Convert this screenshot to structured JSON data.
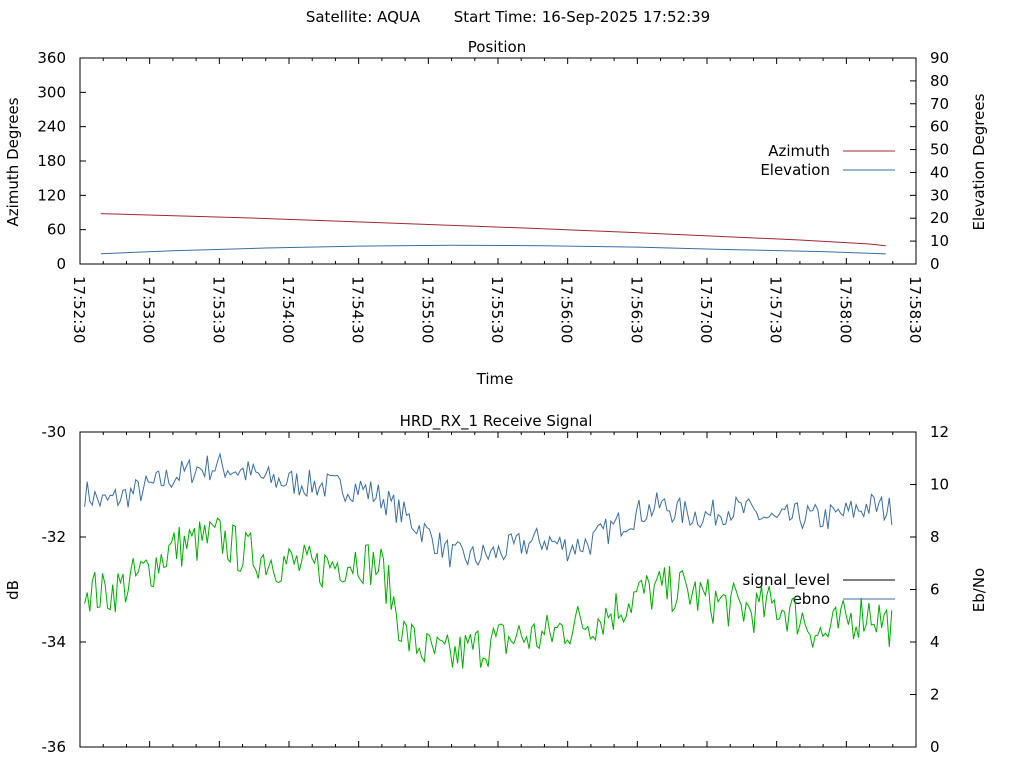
{
  "header": {
    "satellite": "Satellite: AQUA",
    "start_time": "Start Time: 16-Sep-2025 17:52:39"
  },
  "colors": {
    "azimuth": "#a0282f",
    "elevation": "#3a6e9e",
    "signal_level": "#000000",
    "signal_green": "#00aa00",
    "ebno": "#3a6e9e"
  },
  "chart_data": [
    {
      "type": "line",
      "title": "Position",
      "xlabel": "Time",
      "ylabel_left": "Azimuth Degrees",
      "ylabel_right": "Elevation Degrees",
      "x_ticks": [
        "17:52:30",
        "17:53:00",
        "17:53:30",
        "17:54:00",
        "17:54:30",
        "17:55:00",
        "17:55:30",
        "17:56:00",
        "17:56:30",
        "17:57:00",
        "17:57:30",
        "17:58:00",
        "17:58:30"
      ],
      "xlim_sec": [
        0,
        360
      ],
      "y_left_ticks": [
        "0",
        "60",
        "120",
        "180",
        "240",
        "300",
        "360"
      ],
      "y_left_lim": [
        0,
        360
      ],
      "y_right_ticks": [
        "0",
        "10",
        "20",
        "30",
        "40",
        "50",
        "60",
        "70",
        "80",
        "90"
      ],
      "y_right_lim": [
        0,
        90
      ],
      "legend": "right",
      "series": [
        {
          "name": "Azimuth",
          "axis": "left",
          "x_sec": [
            9,
            70,
            130,
            190,
            250,
            310,
            340,
            347
          ],
          "values": [
            88,
            81,
            72,
            63,
            53,
            42,
            35,
            32
          ]
        },
        {
          "name": "Elevation",
          "axis": "right",
          "x_sec": [
            9,
            40,
            80,
            120,
            160,
            200,
            240,
            280,
            320,
            347
          ],
          "values": [
            4.5,
            5.8,
            7.0,
            7.8,
            8.2,
            8.0,
            7.4,
            6.3,
            5.4,
            4.4
          ]
        }
      ]
    },
    {
      "type": "line",
      "title": "HRD_RX_1 Receive Signal",
      "ylabel_left": "dB",
      "ylabel_right": "Eb/No",
      "xlim_sec": [
        0,
        360
      ],
      "y_left_ticks": [
        "-36",
        "-34",
        "-32",
        "-30"
      ],
      "y_left_lim": [
        -36,
        -30
      ],
      "y_right_ticks": [
        "0",
        "2",
        "4",
        "6",
        "8",
        "10",
        "12"
      ],
      "y_right_lim": [
        0,
        12
      ],
      "legend": "right",
      "x_sec": [
        0,
        10,
        20,
        30,
        40,
        50,
        60,
        70,
        80,
        90,
        100,
        110,
        120,
        130,
        140,
        150,
        160,
        170,
        180,
        190,
        200,
        210,
        220,
        230,
        240,
        250,
        260,
        270,
        280,
        290,
        300,
        310,
        320,
        330,
        340,
        350
      ],
      "series": [
        {
          "name": "signal_level",
          "axis": "left",
          "values": []
        },
        {
          "name": "ebno",
          "axis": "right",
          "values": [
            9.8,
            9.3,
            9.6,
            9.9,
            10.3,
            10.6,
            10.7,
            10.5,
            10.2,
            10.1,
            10.0,
            9.9,
            9.9,
            9.5,
            8.8,
            8.1,
            7.3,
            7.2,
            7.4,
            7.7,
            7.9,
            7.6,
            7.8,
            8.4,
            8.9,
            9.2,
            8.9,
            8.8,
            9.1,
            8.9,
            8.6,
            8.8,
            8.7,
            8.9,
            9.2,
            9.0
          ]
        },
        {
          "name": "",
          "axis": "left",
          "values": [
            -32.9,
            -33.1,
            -32.9,
            -32.6,
            -32.2,
            -32.1,
            -32.0,
            -32.3,
            -32.4,
            -32.5,
            -32.6,
            -32.5,
            -32.4,
            -32.6,
            -33.9,
            -34.2,
            -34.3,
            -34.1,
            -34.0,
            -33.9,
            -33.9,
            -33.7,
            -33.6,
            -33.4,
            -33.1,
            -33.0,
            -33.0,
            -33.2,
            -33.3,
            -33.4,
            -33.3,
            -33.5,
            -33.9,
            -33.6,
            -33.4,
            -33.7
          ]
        }
      ]
    }
  ]
}
